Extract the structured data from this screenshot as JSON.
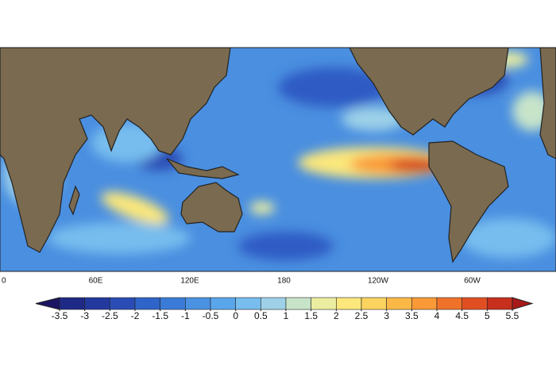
{
  "map": {
    "longitude_labels": [
      "0",
      "60E",
      "120E",
      "180",
      "120W",
      "60W"
    ]
  },
  "colorbar": {
    "ticks": [
      -3.5,
      -3,
      -2.5,
      -2,
      -1.5,
      -1,
      -0.5,
      0,
      0.5,
      1,
      1.5,
      2,
      2.5,
      3,
      3.5,
      4,
      4.5,
      5,
      5.5
    ],
    "colors": [
      "#1b1464",
      "#1f2a87",
      "#23399e",
      "#2a4db5",
      "#2f64c9",
      "#3b7bd8",
      "#4b92e3",
      "#5aa6ea",
      "#77bdee",
      "#9ed1e8",
      "#c7e4c9",
      "#ebeea0",
      "#fbe77c",
      "#fdd35f",
      "#fcb847",
      "#f99a37",
      "#f0722a",
      "#e04f22",
      "#c7301c",
      "#a8191a"
    ]
  }
}
